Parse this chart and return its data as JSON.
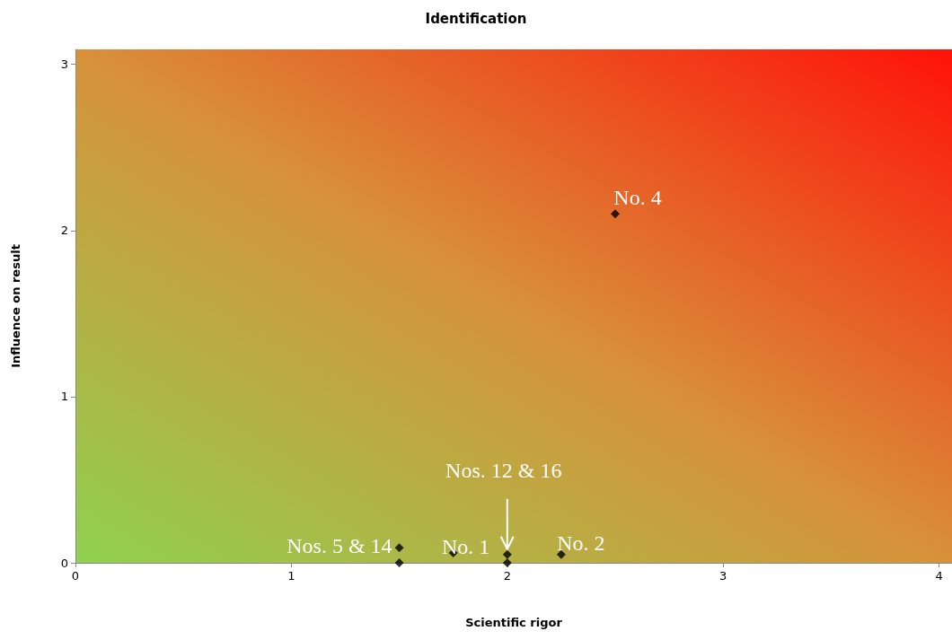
{
  "chart_data": {
    "type": "scatter",
    "title": "Identification",
    "xlabel": "Scientific rigor",
    "ylabel": "Influence on result",
    "x": [
      2.5,
      1.5,
      1.5,
      1.75,
      2,
      2,
      2.25
    ],
    "values": [
      2.1,
      0.09,
      0,
      0.06,
      0.05,
      0,
      0.05
    ],
    "color": "#000000",
    "marker": "diamond",
    "grid": false,
    "xlim": [
      0,
      4.06
    ],
    "xticks": [
      0,
      1,
      2,
      3,
      4
    ],
    "ylim": [
      0,
      3.09
    ],
    "yticks": [
      0,
      1,
      2,
      3
    ],
    "annotations": [
      {
        "text": "No. 4",
        "x": 2.5,
        "y": 2.1
      },
      {
        "text": "Nos. 5 & 14",
        "x": 1.5,
        "y": 0.09
      },
      {
        "text": "No. 1",
        "x": 1.75,
        "y": 0.06
      },
      {
        "text": "Nos. 12 & 16",
        "x": 2,
        "y": 0.05
      },
      {
        "text": "No. 2",
        "x": 2.25,
        "y": 0.05
      }
    ]
  }
}
